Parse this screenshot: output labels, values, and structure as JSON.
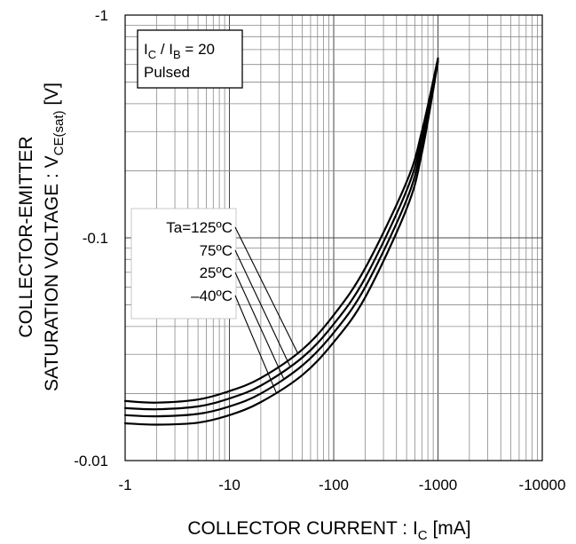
{
  "chart_data": {
    "type": "line",
    "xscale": "log",
    "yscale": "log",
    "xlim": [
      -1,
      -10000
    ],
    "ylim": [
      -0.01,
      -1
    ],
    "x_ticks": [
      "-1",
      "-10",
      "-100",
      "-1000",
      "-10000"
    ],
    "y_ticks": [
      "-1",
      "-0.1",
      "-0.01"
    ],
    "xlabel": {
      "main": "COLLECTOR CURRENT : I",
      "sub": "C",
      "unit": " [mA]"
    },
    "ylabel": {
      "line1": "COLLECTOR-EMITTER",
      "line2_main": "SATURATION VOLTAGE : V",
      "line2_sub": "CE(sat)",
      "line2_unit": " [V]"
    },
    "condition": {
      "i1": "I",
      "s1": "C",
      "mid": " / I",
      "s2": "B",
      "rest": " = 20",
      "line2": "Pulsed"
    },
    "grid": true,
    "series": [
      {
        "name": "Ta=125ºC",
        "x": [
          -1,
          -2,
          -5,
          -10,
          -20,
          -50,
          -100,
          -200,
          -500,
          -700,
          -1000
        ],
        "y": [
          -0.0185,
          -0.0182,
          -0.0188,
          -0.0205,
          -0.0235,
          -0.0315,
          -0.045,
          -0.073,
          -0.178,
          -0.3,
          -0.64
        ]
      },
      {
        "name": "75ºC",
        "x": [
          -1,
          -2,
          -5,
          -10,
          -20,
          -50,
          -100,
          -200,
          -500,
          -700,
          -1000
        ],
        "y": [
          -0.0172,
          -0.017,
          -0.0175,
          -0.019,
          -0.0217,
          -0.029,
          -0.041,
          -0.066,
          -0.163,
          -0.28,
          -0.63
        ]
      },
      {
        "name": "25ºC",
        "x": [
          -1,
          -2,
          -5,
          -10,
          -20,
          -50,
          -100,
          -200,
          -500,
          -700,
          -1000
        ],
        "y": [
          -0.016,
          -0.0158,
          -0.0162,
          -0.0175,
          -0.02,
          -0.0267,
          -0.0375,
          -0.06,
          -0.148,
          -0.26,
          -0.62
        ]
      },
      {
        "name": "–40ºC",
        "x": [
          -1,
          -2,
          -5,
          -10,
          -20,
          -50,
          -100,
          -200,
          -500,
          -700,
          -1000
        ],
        "y": [
          -0.0147,
          -0.0145,
          -0.0148,
          -0.016,
          -0.0183,
          -0.0242,
          -0.034,
          -0.054,
          -0.135,
          -0.24,
          -0.62
        ]
      }
    ]
  }
}
